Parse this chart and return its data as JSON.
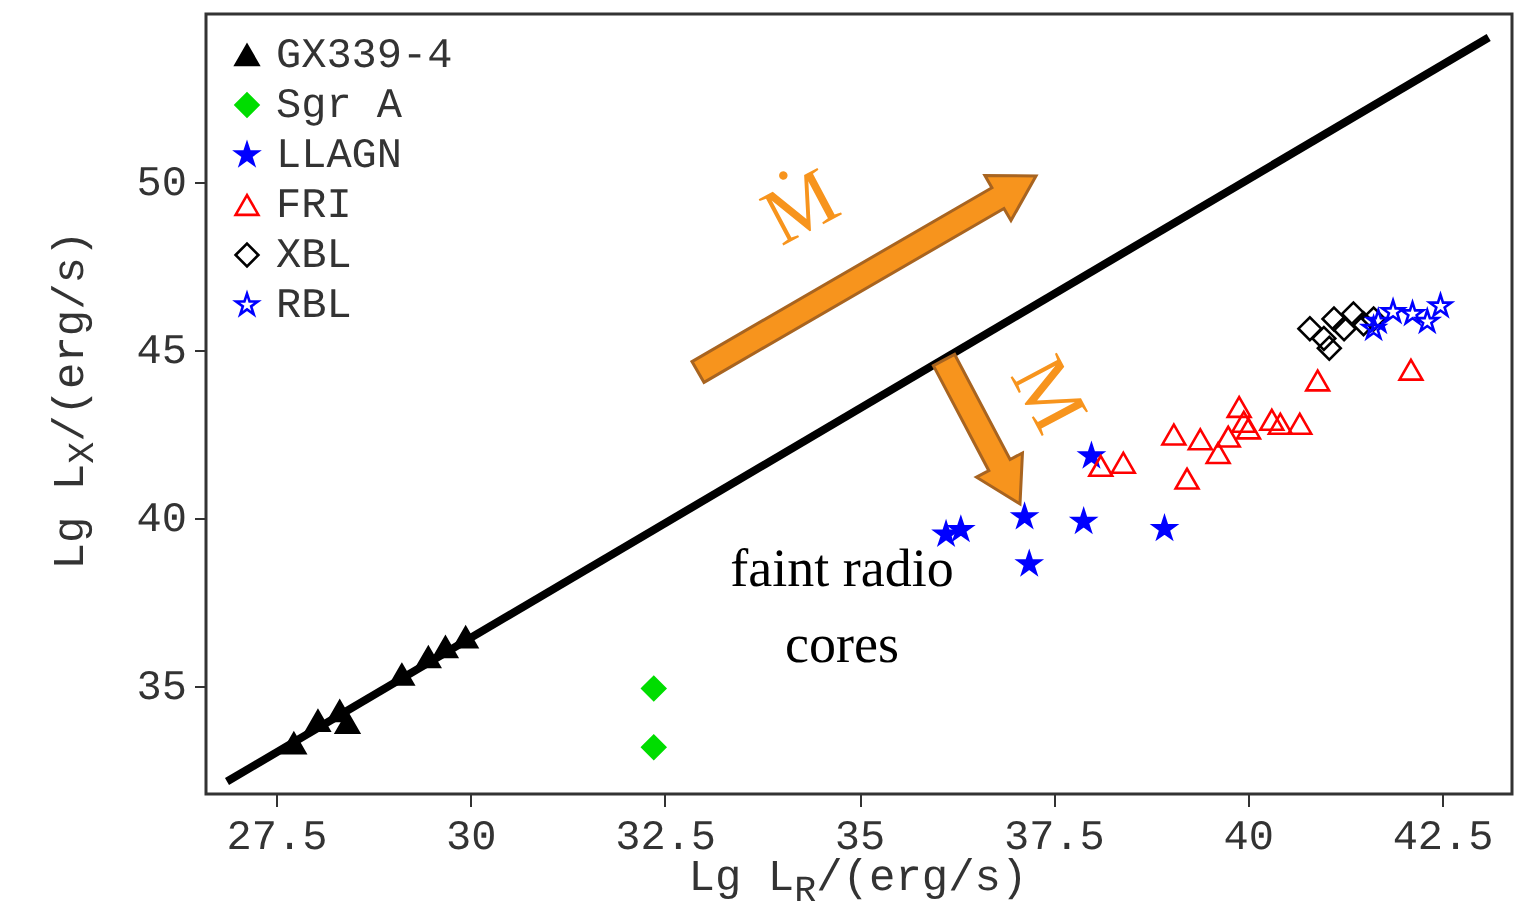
{
  "chart_data": {
    "type": "scatter",
    "xlabel": "Lg L$_{R}$/(erg/s)",
    "ylabel": "Lg L$_{X}$/(erg/s)",
    "xlim": [
      26.6,
      43.4
    ],
    "ylim": [
      31.8,
      55
    ],
    "xticks": [
      27.5,
      30,
      32.5,
      35,
      37.5,
      40,
      42.5
    ],
    "yticks": [
      35,
      40,
      45,
      50
    ],
    "grid": false,
    "legend": "top left",
    "annotations": [
      "faint radio cores",
      "Ṁ",
      "M"
    ],
    "series": [
      {
        "type": "line",
        "color": "#000000",
        "x": [
          26.87,
          43.1
        ],
        "values": [
          32.17,
          54.3
        ]
      },
      {
        "name": "GX339-4",
        "color": "#000000",
        "marker": "triangle",
        "x": [
          27.73,
          28.04,
          28.32,
          28.42,
          29.12,
          29.46,
          29.68,
          29.94
        ],
        "values": [
          33.31,
          33.98,
          34.27,
          33.92,
          35.35,
          35.87,
          36.17,
          36.46
        ]
      },
      {
        "name": "Sgr A",
        "color": "#00dd00",
        "marker": "diamond",
        "x": [
          32.36,
          32.36
        ],
        "values": [
          34.94,
          33.19
        ]
      },
      {
        "name": "LLAGN",
        "color": "#0000ff",
        "marker": "star",
        "x": [
          36.12,
          36.31,
          37.13,
          37.19,
          37.89,
          37.99,
          38.93
        ],
        "values": [
          39.52,
          39.66,
          40.04,
          38.64,
          39.9,
          41.85,
          39.69
        ]
      },
      {
        "name": "FRI",
        "color": "#ff0000",
        "marker": "triangle",
        "x": [
          38.11,
          38.4,
          39.05,
          39.22,
          39.39,
          39.62,
          39.75,
          39.89,
          39.95,
          40.01,
          40.31,
          40.42,
          40.67,
          40.9,
          42.1
        ],
        "values": [
          41.56,
          41.65,
          42.49,
          41.18,
          42.35,
          41.94,
          42.43,
          43.31,
          42.87,
          42.67,
          42.93,
          42.81,
          42.81,
          44.1,
          44.42
        ]
      },
      {
        "name": "XBL",
        "color": "#000000",
        "marker": "diamond",
        "x": [
          40.8,
          40.98,
          41.11,
          41.24,
          41.36,
          41.49,
          41.05,
          41.62
        ],
        "values": [
          45.64,
          45.35,
          45.93,
          45.64,
          46.08,
          45.79,
          45.06,
          45.93
        ]
      },
      {
        "name": "RBL",
        "color": "#0000ff",
        "marker": "star",
        "x": [
          41.68,
          41.87,
          42.12,
          42.31,
          42.48,
          41.62
        ],
        "values": [
          45.85,
          46.14,
          46.08,
          45.85,
          46.31,
          45.64
        ]
      }
    ]
  }
}
